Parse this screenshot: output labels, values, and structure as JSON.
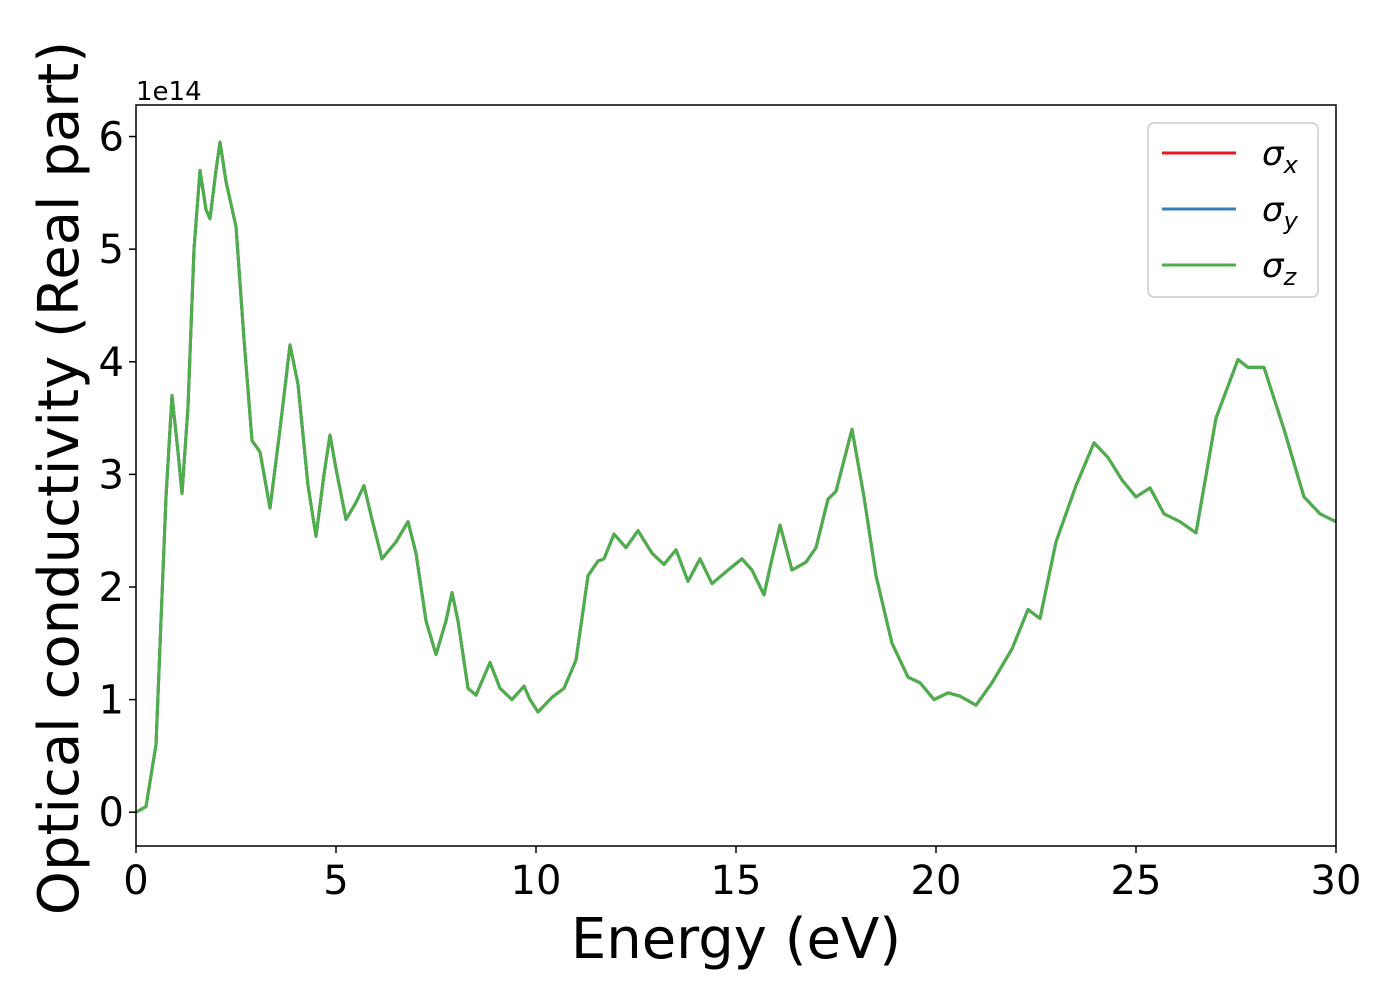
{
  "chart_data": {
    "type": "line",
    "xlabel": "Energy (eV)",
    "ylabel": "Optical conductivity (Real part)",
    "y_offset_text": "1e14",
    "xlim": [
      0,
      30
    ],
    "xticks": [
      0,
      5,
      10,
      15,
      20,
      25,
      30
    ],
    "ylim": [
      -0.3,
      6.28
    ],
    "yticks": [
      0,
      1,
      2,
      3,
      4,
      5,
      6
    ],
    "legend": "upper right",
    "x": [
      0,
      0.25,
      0.5,
      0.75,
      0.9,
      1.05,
      1.15,
      1.3,
      1.45,
      1.6,
      1.75,
      1.85,
      2.0,
      2.1,
      2.25,
      2.5,
      2.7,
      2.9,
      3.1,
      3.35,
      3.6,
      3.85,
      4.05,
      4.3,
      4.5,
      4.7,
      4.85,
      5.0,
      5.25,
      5.5,
      5.7,
      5.9,
      6.15,
      6.5,
      6.8,
      7.0,
      7.25,
      7.5,
      7.75,
      7.9,
      8.05,
      8.3,
      8.5,
      8.85,
      9.1,
      9.4,
      9.7,
      9.85,
      10.05,
      10.4,
      10.7,
      11.0,
      11.3,
      11.55,
      11.7,
      11.95,
      12.25,
      12.55,
      12.9,
      13.2,
      13.5,
      13.8,
      14.1,
      14.4,
      14.8,
      15.15,
      15.4,
      15.7,
      15.9,
      16.1,
      16.4,
      16.75,
      17.0,
      17.3,
      17.5,
      17.9,
      18.2,
      18.5,
      18.9,
      19.3,
      19.6,
      19.95,
      20.3,
      20.6,
      21.0,
      21.4,
      21.9,
      22.3,
      22.6,
      23.0,
      23.5,
      23.95,
      24.3,
      24.65,
      25.0,
      25.35,
      25.7,
      26.1,
      26.5,
      27.0,
      27.55,
      27.8,
      28.2,
      28.7,
      29.2,
      29.6,
      30.0
    ],
    "series": [
      {
        "name": "σx",
        "color": "#e41a1c",
        "values": [
          0,
          0.05,
          0.6,
          2.8,
          3.7,
          3.2,
          2.83,
          3.6,
          5.0,
          5.7,
          5.35,
          5.27,
          5.7,
          5.95,
          5.6,
          5.2,
          4.2,
          3.3,
          3.2,
          2.7,
          3.4,
          4.15,
          3.8,
          2.9,
          2.45,
          3.0,
          3.35,
          3.05,
          2.6,
          2.75,
          2.9,
          2.6,
          2.25,
          2.4,
          2.58,
          2.3,
          1.7,
          1.4,
          1.7,
          1.95,
          1.7,
          1.1,
          1.04,
          1.33,
          1.1,
          1.0,
          1.12,
          1.0,
          0.89,
          1.02,
          1.1,
          1.35,
          2.1,
          2.23,
          2.25,
          2.47,
          2.35,
          2.5,
          2.3,
          2.2,
          2.33,
          2.05,
          2.25,
          2.03,
          2.15,
          2.25,
          2.15,
          1.93,
          2.25,
          2.55,
          2.15,
          2.22,
          2.35,
          2.78,
          2.85,
          3.4,
          2.8,
          2.1,
          1.5,
          1.2,
          1.15,
          1.0,
          1.06,
          1.03,
          0.95,
          1.15,
          1.45,
          1.8,
          1.72,
          2.4,
          2.9,
          3.28,
          3.15,
          2.95,
          2.8,
          2.88,
          2.65,
          2.58,
          2.48,
          3.5,
          4.02,
          3.95,
          3.95,
          3.4,
          2.8,
          2.65,
          2.58
        ]
      },
      {
        "name": "σy",
        "color": "#377eb8",
        "values": [
          0,
          0.05,
          0.6,
          2.8,
          3.7,
          3.2,
          2.83,
          3.6,
          5.0,
          5.7,
          5.35,
          5.27,
          5.7,
          5.95,
          5.6,
          5.2,
          4.2,
          3.3,
          3.2,
          2.7,
          3.4,
          4.15,
          3.8,
          2.9,
          2.45,
          3.0,
          3.35,
          3.05,
          2.6,
          2.75,
          2.9,
          2.6,
          2.25,
          2.4,
          2.58,
          2.3,
          1.7,
          1.4,
          1.7,
          1.95,
          1.7,
          1.1,
          1.04,
          1.33,
          1.1,
          1.0,
          1.12,
          1.0,
          0.89,
          1.02,
          1.1,
          1.35,
          2.1,
          2.23,
          2.25,
          2.47,
          2.35,
          2.5,
          2.3,
          2.2,
          2.33,
          2.05,
          2.25,
          2.03,
          2.15,
          2.25,
          2.15,
          1.93,
          2.25,
          2.55,
          2.15,
          2.22,
          2.35,
          2.78,
          2.85,
          3.4,
          2.8,
          2.1,
          1.5,
          1.2,
          1.15,
          1.0,
          1.06,
          1.03,
          0.95,
          1.15,
          1.45,
          1.8,
          1.72,
          2.4,
          2.9,
          3.28,
          3.15,
          2.95,
          2.8,
          2.88,
          2.65,
          2.58,
          2.48,
          3.5,
          4.02,
          3.95,
          3.95,
          3.4,
          2.8,
          2.65,
          2.58
        ]
      },
      {
        "name": "σz",
        "color": "#4daf4a",
        "values": [
          0,
          0.05,
          0.6,
          2.8,
          3.7,
          3.2,
          2.83,
          3.6,
          5.0,
          5.7,
          5.35,
          5.27,
          5.7,
          5.95,
          5.6,
          5.2,
          4.2,
          3.3,
          3.2,
          2.7,
          3.4,
          4.15,
          3.8,
          2.9,
          2.45,
          3.0,
          3.35,
          3.05,
          2.6,
          2.75,
          2.9,
          2.6,
          2.25,
          2.4,
          2.58,
          2.3,
          1.7,
          1.4,
          1.7,
          1.95,
          1.7,
          1.1,
          1.04,
          1.33,
          1.1,
          1.0,
          1.12,
          1.0,
          0.89,
          1.02,
          1.1,
          1.35,
          2.1,
          2.23,
          2.25,
          2.47,
          2.35,
          2.5,
          2.3,
          2.2,
          2.33,
          2.05,
          2.25,
          2.03,
          2.15,
          2.25,
          2.15,
          1.93,
          2.25,
          2.55,
          2.15,
          2.22,
          2.35,
          2.78,
          2.85,
          3.4,
          2.8,
          2.1,
          1.5,
          1.2,
          1.15,
          1.0,
          1.06,
          1.03,
          0.95,
          1.15,
          1.45,
          1.8,
          1.72,
          2.4,
          2.9,
          3.28,
          3.15,
          2.95,
          2.8,
          2.88,
          2.65,
          2.58,
          2.48,
          3.5,
          4.02,
          3.95,
          3.95,
          3.4,
          2.8,
          2.65,
          2.58
        ]
      }
    ]
  }
}
